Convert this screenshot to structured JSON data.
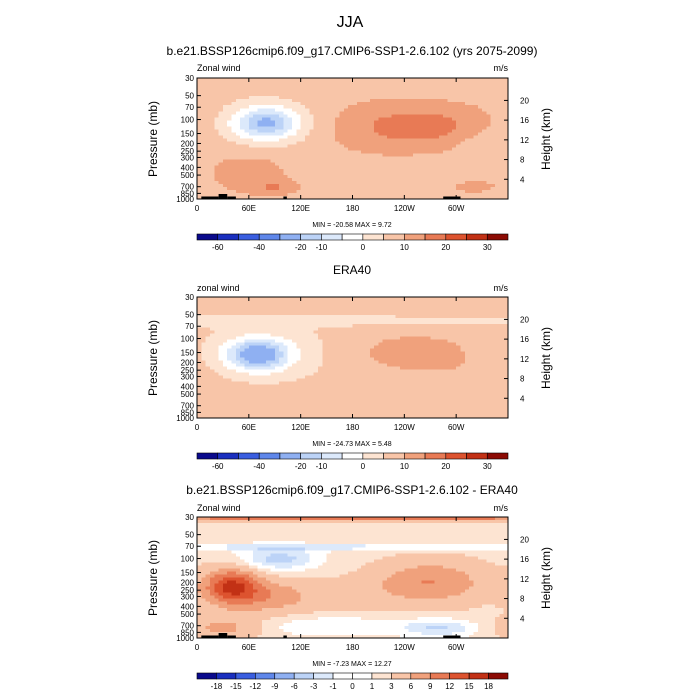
{
  "figure": {
    "title": "JJA"
  },
  "colors": {
    "map_main": [
      "#0a0a8c",
      "#1a2fbf",
      "#3a5ee0",
      "#5f87ea",
      "#8fb0f2",
      "#bcd3f7",
      "#dce9fb",
      "#ffffff",
      "#fde4d2",
      "#f8c5a8",
      "#f0a17c",
      "#e87a55",
      "#dd532f",
      "#c23115",
      "#8c0b04"
    ],
    "map_diff": [
      "#0a0a8c",
      "#1a2fbf",
      "#3a5ee0",
      "#5f87ea",
      "#8fb0f2",
      "#bcd3f7",
      "#dce9fb",
      "#ffffff",
      "#ffffff",
      "#fde4d2",
      "#f8c5a8",
      "#f0a17c",
      "#e87a55",
      "#dd532f",
      "#c23115",
      "#8c0b04"
    ]
  },
  "chart_data": [
    {
      "type": "heatmap",
      "title": "b.e21.BSSP126cmip6.f09_g17.CMIP6-SSP1-2.6.102 (yrs 2075-2099)",
      "left_label": "Zonal wind",
      "right_label": "m/s",
      "xlabel": "",
      "ylabel": "Pressure (mb)",
      "y2label": "Height (km)",
      "x_ticks": [
        "0",
        "60E",
        "120E",
        "180",
        "120W",
        "60W"
      ],
      "x_tick_lon": [
        0,
        60,
        120,
        180,
        240,
        300
      ],
      "xlim": [
        0,
        360
      ],
      "y_scale": "log",
      "ylim": [
        1000,
        30
      ],
      "y_ticks": [
        "30",
        "50",
        "70",
        "100",
        "150",
        "200",
        "250",
        "300",
        "400",
        "500",
        "700",
        "850",
        "1000"
      ],
      "y_tick_p": [
        30,
        50,
        70,
        100,
        150,
        200,
        250,
        300,
        400,
        500,
        700,
        850,
        1000
      ],
      "y2_ticks": [
        "20",
        "16",
        "12",
        "8",
        "4"
      ],
      "y2_tick_km": [
        20,
        16,
        12,
        8,
        4
      ],
      "minmax": "MIN = -20.58  MAX =   9.72",
      "colorbar_labels": [
        "-60",
        "-40",
        "-20",
        "-10",
        "0",
        "10",
        "20",
        "30"
      ],
      "colorbar_label_at_edge": [
        1,
        3,
        5,
        6,
        8,
        10,
        12,
        14
      ],
      "contour_levels": [
        -70,
        -60,
        -50,
        -40,
        -30,
        -20,
        -15,
        -10,
        -5,
        0,
        5,
        10,
        15,
        20,
        25,
        30
      ],
      "blobs": [
        {
          "lon": 80,
          "p": 110,
          "value": -20,
          "slon": 26,
          "sp": 0.32
        },
        {
          "lon": 85,
          "p": 120,
          "value": -5,
          "slon": 48,
          "sp": 0.55
        },
        {
          "lon": 270,
          "p": 120,
          "value": 8,
          "slon": 55,
          "sp": 0.45
        },
        {
          "lon": 200,
          "p": 130,
          "value": 4,
          "slon": 60,
          "sp": 0.6
        },
        {
          "lon": 60,
          "p": 450,
          "value": 5,
          "slon": 35,
          "sp": 0.45
        },
        {
          "lon": 90,
          "p": 720,
          "value": 6,
          "slon": 20,
          "sp": 0.15
        },
        {
          "lon": 330,
          "p": 200,
          "value": -3,
          "slon": 20,
          "sp": 0.35
        },
        {
          "lon": 320,
          "p": 700,
          "value": 3,
          "slon": 30,
          "sp": 0.25
        }
      ],
      "background_value": 2.5,
      "terrain": [
        [
          5,
          25,
          1
        ],
        [
          25,
          35,
          2
        ],
        [
          35,
          45,
          1
        ],
        [
          100,
          104,
          1
        ],
        [
          285,
          300,
          1
        ],
        [
          300,
          305,
          1
        ]
      ]
    },
    {
      "type": "heatmap",
      "title": "ERA40",
      "left_label": "zonal wind",
      "right_label": "m/s",
      "xlabel": "",
      "ylabel": "Pressure (mb)",
      "y2label": "Height (km)",
      "x_ticks": [
        "0",
        "60E",
        "120E",
        "180",
        "120W",
        "60W"
      ],
      "x_tick_lon": [
        0,
        60,
        120,
        180,
        240,
        300
      ],
      "xlim": [
        0,
        360
      ],
      "y_scale": "log",
      "ylim": [
        1000,
        30
      ],
      "y_ticks": [
        "30",
        "50",
        "70",
        "100",
        "150",
        "200",
        "250",
        "300",
        "400",
        "500",
        "700",
        "850",
        "1000"
      ],
      "y_tick_p": [
        30,
        50,
        70,
        100,
        150,
        200,
        250,
        300,
        400,
        500,
        700,
        850,
        1000
      ],
      "y2_ticks": [
        "20",
        "16",
        "12",
        "8",
        "4"
      ],
      "y2_tick_km": [
        20,
        16,
        12,
        8,
        4
      ],
      "minmax": "MIN = -24.73  MAX =   5.48",
      "colorbar_labels": [
        "-60",
        "-40",
        "-20",
        "-10",
        "0",
        "10",
        "20",
        "30"
      ],
      "colorbar_label_at_edge": [
        1,
        3,
        5,
        6,
        8,
        10,
        12,
        14
      ],
      "contour_levels": [
        -70,
        -60,
        -50,
        -40,
        -30,
        -20,
        -15,
        -10,
        -5,
        0,
        5,
        10,
        15,
        20,
        25,
        30
      ],
      "blobs": [
        {
          "lon": 70,
          "p": 160,
          "value": -24,
          "slon": 24,
          "sp": 0.3
        },
        {
          "lon": 80,
          "p": 150,
          "value": -6,
          "slon": 55,
          "sp": 0.6
        },
        {
          "lon": 250,
          "p": 150,
          "value": 5,
          "slon": 60,
          "sp": 0.45
        },
        {
          "lon": 180,
          "p": 60,
          "value": -4,
          "slon": 200,
          "sp": 0.12
        },
        {
          "lon": 60,
          "p": 700,
          "value": 3,
          "slon": 40,
          "sp": 0.3
        },
        {
          "lon": 320,
          "p": 400,
          "value": 2,
          "slon": 40,
          "sp": 0.5
        }
      ],
      "background_value": 2.0,
      "terrain": []
    },
    {
      "type": "heatmap",
      "title": "b.e21.BSSP126cmip6.f09_g17.CMIP6-SSP1-2.6.102 - ERA40",
      "left_label": "Zonal wind",
      "right_label": "m/s",
      "xlabel": "",
      "ylabel": "Pressure (mb)",
      "y2label": "Height (km)",
      "x_ticks": [
        "0",
        "60E",
        "120E",
        "180",
        "120W",
        "60W"
      ],
      "x_tick_lon": [
        0,
        60,
        120,
        180,
        240,
        300
      ],
      "xlim": [
        0,
        360
      ],
      "y_scale": "log",
      "ylim": [
        1000,
        30
      ],
      "y_ticks": [
        "30",
        "50",
        "70",
        "100",
        "150",
        "200",
        "250",
        "300",
        "400",
        "500",
        "700",
        "850",
        "1000"
      ],
      "y_tick_p": [
        30,
        50,
        70,
        100,
        150,
        200,
        250,
        300,
        400,
        500,
        700,
        850,
        1000
      ],
      "y2_ticks": [
        "20",
        "16",
        "12",
        "8",
        "4"
      ],
      "y2_tick_km": [
        20,
        16,
        12,
        8,
        4
      ],
      "minmax": "MIN = -7.23  MAX = 12.27",
      "colorbar_labels": [
        "-18",
        "-15",
        "-12",
        "-9",
        "-6",
        "-3",
        "-1",
        "0",
        "1",
        "3",
        "6",
        "9",
        "12",
        "15",
        "18"
      ],
      "colorbar_label_at_edge": [
        1,
        2,
        3,
        4,
        5,
        6,
        7,
        8,
        9,
        10,
        11,
        12,
        13,
        14,
        15
      ],
      "contour_levels": [
        -21,
        -18,
        -15,
        -12,
        -9,
        -6,
        -3,
        -1,
        0,
        1,
        3,
        6,
        9,
        12,
        15,
        18,
        21
      ],
      "blobs": [
        {
          "lon": 180,
          "p": 30,
          "value": 9,
          "slon": 300,
          "sp": 0.1
        },
        {
          "lon": 180,
          "p": 72,
          "value": -4,
          "slon": 300,
          "sp": 0.06
        },
        {
          "lon": 95,
          "p": 100,
          "value": -6,
          "slon": 30,
          "sp": 0.25
        },
        {
          "lon": 40,
          "p": 220,
          "value": 12,
          "slon": 22,
          "sp": 0.35
        },
        {
          "lon": 80,
          "p": 300,
          "value": 6,
          "slon": 40,
          "sp": 0.35
        },
        {
          "lon": 270,
          "p": 200,
          "value": 7,
          "slon": 45,
          "sp": 0.45
        },
        {
          "lon": 180,
          "p": 300,
          "value": 1.5,
          "slon": 40,
          "sp": 0.4
        },
        {
          "lon": 160,
          "p": 700,
          "value": -3,
          "slon": 60,
          "sp": 0.2
        },
        {
          "lon": 280,
          "p": 750,
          "value": -5,
          "slon": 30,
          "sp": 0.18
        },
        {
          "lon": 30,
          "p": 750,
          "value": 5,
          "slon": 30,
          "sp": 0.25
        }
      ],
      "background_value": 2.0,
      "terrain": [
        [
          5,
          25,
          1
        ],
        [
          25,
          35,
          2
        ],
        [
          35,
          45,
          1
        ],
        [
          100,
          104,
          1
        ],
        [
          285,
          300,
          1
        ],
        [
          300,
          305,
          1
        ]
      ]
    }
  ]
}
